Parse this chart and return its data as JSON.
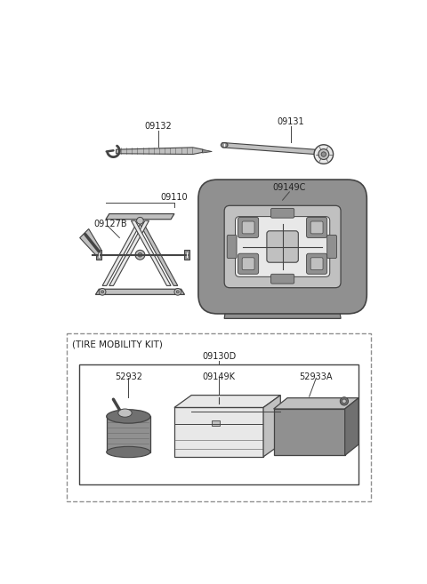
{
  "background_color": "#ffffff",
  "line_color": "#444444",
  "label_fontsize": 7.0,
  "label_color": "#222222",
  "gray_light": "#e8e8e8",
  "gray_mid": "#c0c0c0",
  "gray_dark": "#909090",
  "gray_darker": "#707070",
  "white": "#ffffff",
  "tool1_label": "09132",
  "tool2_label": "09131",
  "jack_label1": "09110",
  "jack_label2": "09127B",
  "case_label": "09149C",
  "kit_label": "(TIRE MOBILITY KIT)",
  "inner_label": "09130D",
  "pump_label": "52932",
  "bag_label": "09149K",
  "block_label": "52933A",
  "fig_w": 4.8,
  "fig_h": 6.57,
  "dpi": 100
}
